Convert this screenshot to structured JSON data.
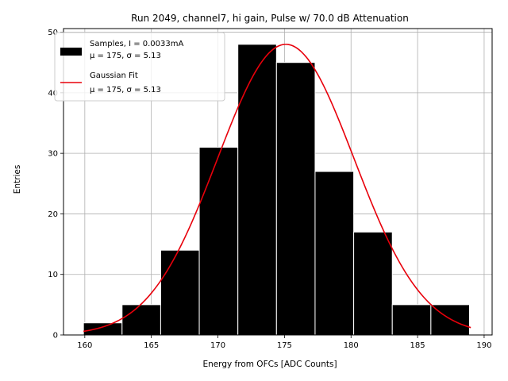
{
  "chart_data": {
    "type": "bar",
    "title": "Run 2049, channel7, hi gain, Pulse w/ 70.0 dB Attenuation",
    "xlabel": "Energy from OFCs [ADC Counts]",
    "ylabel": "Entries",
    "xlim": [
      158.4,
      190.6
    ],
    "ylim": [
      0,
      50.6
    ],
    "xticks": [
      160,
      165,
      170,
      175,
      180,
      185,
      190
    ],
    "yticks": [
      0,
      10,
      20,
      30,
      40,
      50
    ],
    "grid": true,
    "legend_position": "top-left",
    "bins": [
      {
        "x0": 159.9,
        "x1": 162.8,
        "count": 2
      },
      {
        "x0": 162.8,
        "x1": 165.7,
        "count": 5
      },
      {
        "x0": 165.7,
        "x1": 168.6,
        "count": 14
      },
      {
        "x0": 168.6,
        "x1": 171.5,
        "count": 31
      },
      {
        "x0": 171.5,
        "x1": 174.4,
        "count": 48
      },
      {
        "x0": 174.4,
        "x1": 177.3,
        "count": 45
      },
      {
        "x0": 177.3,
        "x1": 180.2,
        "count": 27
      },
      {
        "x0": 180.2,
        "x1": 183.1,
        "count": 17
      },
      {
        "x0": 183.1,
        "x1": 186.0,
        "count": 5
      },
      {
        "x0": 186.0,
        "x1": 188.9,
        "count": 5
      }
    ],
    "series": [
      {
        "name": "Samples, I = 0.0033mA",
        "name2": "μ = 175, σ = 5.13",
        "kind": "histogram",
        "color": "#000000"
      },
      {
        "name": "Gaussian Fit",
        "name2": "μ = 175, σ = 5.13",
        "kind": "line",
        "color": "#e8000b",
        "mu": 175.1,
        "sigma": 5.13,
        "amplitude": 48.0,
        "x_range": [
          159.9,
          189.0
        ]
      }
    ]
  }
}
